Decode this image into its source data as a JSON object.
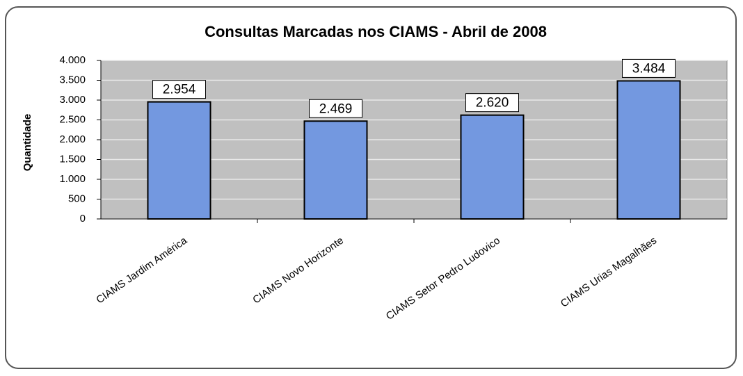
{
  "chart_data": {
    "type": "bar",
    "title": "Consultas Marcadas nos CIAMS - Abril de 2008",
    "y_label": "Quantidade",
    "categories": [
      "CIAMS Jardim América",
      "CIAMS Novo Horizonte",
      "CIAMS Setor Pedro Ludovico",
      "CIAMS Urias Magalhães"
    ],
    "values": [
      2954,
      2469,
      2620,
      3484
    ],
    "value_labels": [
      "2.954",
      "2.469",
      "2.620",
      "3.484"
    ],
    "color": "#7398e0",
    "ylim": [
      0,
      4000
    ],
    "yticks": [
      0,
      500,
      {
        "value": 1000,
        "label": "1.000"
      },
      {
        "value": 1500,
        "label": "1.500"
      },
      {
        "value": 2000,
        "label": "2.000"
      },
      {
        "value": 2500,
        "label": "2.500"
      },
      {
        "value": 3000,
        "label": "3.000"
      },
      {
        "value": 3500,
        "label": "3.500"
      },
      {
        "value": 4000,
        "label": "4.000"
      }
    ],
    "grid": true
  }
}
